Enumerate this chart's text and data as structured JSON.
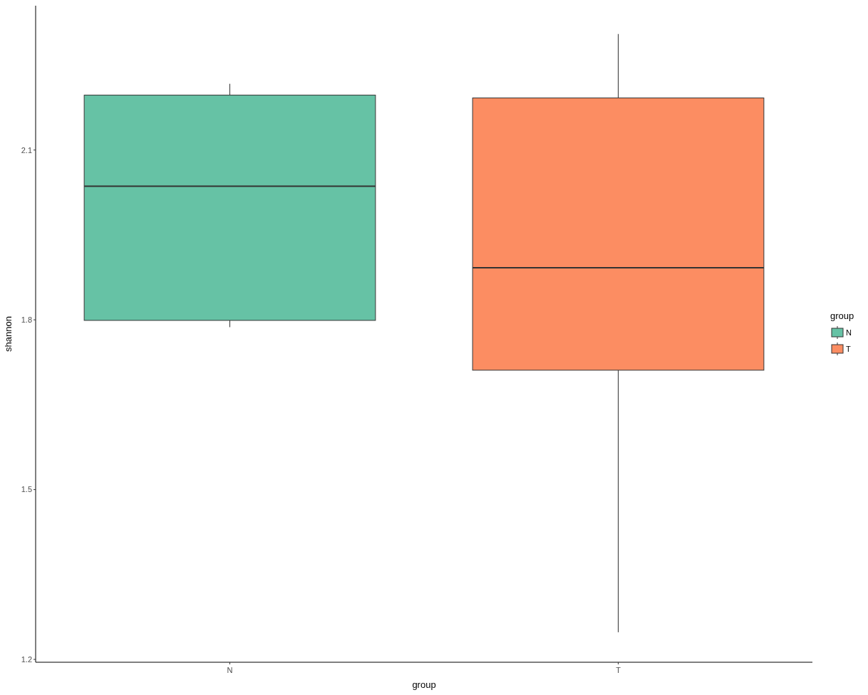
{
  "chart_data": {
    "type": "box",
    "xlabel": "group",
    "ylabel": "shannon",
    "legend_title": "group",
    "legend": "right",
    "categories": [
      "N",
      "T"
    ],
    "series": [
      {
        "name": "N",
        "color": "#66c2a5",
        "boxes": [
          {
            "low": 1.787,
            "q1": 1.799,
            "median": 2.036,
            "q3": 2.197,
            "high": 2.217
          },
          null
        ]
      },
      {
        "name": "T",
        "color": "#fc8d62",
        "boxes": [
          null,
          {
            "low": 1.248,
            "q1": 1.711,
            "median": 1.892,
            "q3": 2.192,
            "high": 2.305
          }
        ]
      }
    ],
    "ylim": [
      1.195,
      2.355
    ],
    "yticks": [
      {
        "value": 1.2,
        "label": "1.2"
      },
      {
        "value": 1.5,
        "label": "1.5"
      },
      {
        "value": 1.8,
        "label": "1.8"
      },
      {
        "value": 2.1,
        "label": "2.1"
      }
    ],
    "grid": false
  }
}
